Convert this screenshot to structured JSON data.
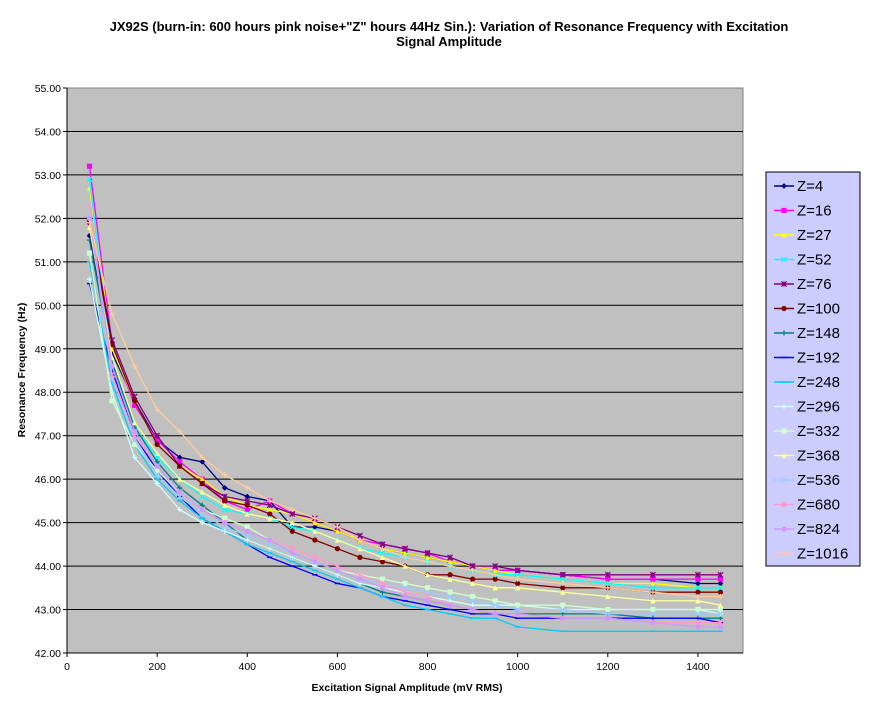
{
  "chart_data": {
    "type": "line",
    "title_lines": [
      "JX92S (burn-in: 600 hours pink noise+\"Z\" hours 44Hz Sin.): Variation of Resonance Frequency with Excitation",
      "Signal Amplitude"
    ],
    "xlabel": "Excitation Signal Amplitude (mV RMS)",
    "ylabel": "Resonance Frequency (Hz)",
    "xlim": [
      0,
      1500
    ],
    "ylim": [
      42,
      55
    ],
    "x_ticks": [
      0,
      200,
      400,
      600,
      800,
      1000,
      1200,
      1400
    ],
    "x_tick_labels": [
      "0",
      "200",
      "400",
      "600",
      "800",
      "1000",
      "1200",
      "1400"
    ],
    "y_ticks": [
      42,
      43,
      44,
      45,
      46,
      47,
      48,
      49,
      50,
      51,
      52,
      53,
      54,
      55
    ],
    "y_tick_labels": [
      "42.00",
      "43.00",
      "44.00",
      "45.00",
      "46.00",
      "47.00",
      "48.00",
      "49.00",
      "50.00",
      "51.00",
      "52.00",
      "53.00",
      "54.00",
      "55.00"
    ],
    "grid": "horizontal",
    "plot_background": "#c0c0c0",
    "legend_position": "right",
    "x": [
      50,
      100,
      150,
      200,
      250,
      300,
      350,
      400,
      450,
      500,
      550,
      600,
      650,
      700,
      750,
      800,
      850,
      900,
      950,
      1000,
      1100,
      1200,
      1300,
      1400,
      1450
    ],
    "series": [
      {
        "name": "Z=4",
        "color": "#000080",
        "marker": "diamond",
        "values": [
          51.6,
          48.9,
          47.8,
          46.9,
          46.5,
          46.4,
          45.8,
          45.6,
          45.5,
          44.9,
          44.9,
          44.8,
          44.6,
          44.4,
          44.3,
          44.2,
          44.1,
          44.0,
          43.9,
          43.9,
          43.8,
          43.7,
          43.7,
          43.6,
          43.6
        ]
      },
      {
        "name": "Z=16",
        "color": "#ff00ff",
        "marker": "square",
        "values": [
          53.2,
          49.1,
          47.7,
          46.9,
          46.4,
          46.0,
          45.5,
          45.3,
          45.5,
          45.2,
          45.0,
          44.8,
          44.6,
          44.5,
          44.4,
          44.3,
          44.1,
          44.0,
          43.9,
          43.9,
          43.8,
          43.7,
          43.7,
          43.7,
          43.7
        ]
      },
      {
        "name": "Z=27",
        "color": "#ffff00",
        "marker": "triangle",
        "values": [
          52.7,
          49.0,
          47.8,
          46.8,
          46.3,
          46.0,
          45.6,
          45.4,
          45.3,
          45.2,
          45.0,
          44.8,
          44.6,
          44.4,
          44.3,
          44.2,
          44.1,
          44.0,
          43.9,
          43.8,
          43.7,
          43.6,
          43.6,
          43.5,
          43.5
        ]
      },
      {
        "name": "Z=52",
        "color": "#00ffff",
        "marker": "x",
        "values": [
          52.9,
          48.6,
          47.2,
          46.5,
          46.0,
          45.6,
          45.3,
          45.2,
          45.1,
          44.9,
          44.8,
          44.6,
          44.4,
          44.3,
          44.2,
          44.1,
          44.0,
          43.9,
          43.8,
          43.8,
          43.7,
          43.6,
          43.5,
          43.5,
          43.5
        ]
      },
      {
        "name": "Z=76",
        "color": "#800080",
        "marker": "star",
        "values": [
          52.0,
          49.2,
          47.9,
          47.0,
          46.3,
          45.9,
          45.6,
          45.5,
          45.4,
          45.2,
          45.1,
          44.9,
          44.7,
          44.5,
          44.4,
          44.3,
          44.2,
          44.0,
          44.0,
          43.9,
          43.8,
          43.8,
          43.8,
          43.8,
          43.8
        ]
      },
      {
        "name": "Z=100",
        "color": "#800000",
        "marker": "circle",
        "values": [
          51.9,
          49.1,
          47.8,
          46.8,
          46.3,
          45.9,
          45.5,
          45.4,
          45.2,
          44.8,
          44.6,
          44.4,
          44.2,
          44.1,
          44.0,
          43.8,
          43.8,
          43.7,
          43.7,
          43.6,
          43.5,
          43.5,
          43.4,
          43.4,
          43.4
        ]
      },
      {
        "name": "Z=148",
        "color": "#008080",
        "marker": "plus",
        "values": [
          51.5,
          48.7,
          47.2,
          46.4,
          45.8,
          45.4,
          45.0,
          44.6,
          44.4,
          44.2,
          44.0,
          43.8,
          43.6,
          43.4,
          43.3,
          43.2,
          43.1,
          43.0,
          42.9,
          42.9,
          42.9,
          42.9,
          42.8,
          42.8,
          42.8
        ]
      },
      {
        "name": "Z=192",
        "color": "#0000ff",
        "marker": "dash",
        "values": [
          50.5,
          48.5,
          47.0,
          46.2,
          45.6,
          45.1,
          44.8,
          44.5,
          44.2,
          44.0,
          43.8,
          43.6,
          43.5,
          43.3,
          43.2,
          43.1,
          43.0,
          42.9,
          42.9,
          42.8,
          42.8,
          42.8,
          42.8,
          42.8,
          42.7
        ]
      },
      {
        "name": "Z=248",
        "color": "#00ccff",
        "marker": "dash",
        "values": [
          51.0,
          48.2,
          46.8,
          46.0,
          45.5,
          45.1,
          44.8,
          44.5,
          44.3,
          44.1,
          43.9,
          43.7,
          43.5,
          43.3,
          43.1,
          43.0,
          42.9,
          42.8,
          42.8,
          42.6,
          42.5,
          42.5,
          42.5,
          42.5,
          42.5
        ]
      },
      {
        "name": "Z=296",
        "color": "#ccffff",
        "marker": "plus",
        "values": [
          50.6,
          48.0,
          46.5,
          45.9,
          45.3,
          45.0,
          44.8,
          44.6,
          44.4,
          44.2,
          44.0,
          43.8,
          43.6,
          43.5,
          43.4,
          43.3,
          43.2,
          43.1,
          43.1,
          43.1,
          43.0,
          43.0,
          43.0,
          43.0,
          42.9
        ]
      },
      {
        "name": "Z=332",
        "color": "#ccffcc",
        "marker": "square",
        "values": [
          51.2,
          47.8,
          46.8,
          46.2,
          45.7,
          45.3,
          45.1,
          44.9,
          44.6,
          44.3,
          44.1,
          43.9,
          43.8,
          43.7,
          43.6,
          43.5,
          43.4,
          43.3,
          43.2,
          43.1,
          43.1,
          43.0,
          43.0,
          43.0,
          43.0
        ]
      },
      {
        "name": "Z=368",
        "color": "#ffff99",
        "marker": "triangle",
        "values": [
          51.8,
          48.8,
          47.3,
          46.6,
          46.0,
          45.7,
          45.4,
          45.2,
          45.1,
          45.0,
          44.8,
          44.6,
          44.4,
          44.2,
          44.0,
          43.8,
          43.7,
          43.6,
          43.5,
          43.5,
          43.4,
          43.3,
          43.2,
          43.2,
          43.1
        ]
      },
      {
        "name": "Z=536",
        "color": "#99ccff",
        "marker": "x",
        "values": [
          52.1,
          48.3,
          46.9,
          46.1,
          45.6,
          45.2,
          44.9,
          44.7,
          44.5,
          44.3,
          44.1,
          43.9,
          43.7,
          43.6,
          43.5,
          43.4,
          43.3,
          43.2,
          43.1,
          43.0,
          43.0,
          42.9,
          42.9,
          42.9,
          42.9
        ]
      },
      {
        "name": "Z=680",
        "color": "#ff99cc",
        "marker": "star",
        "values": [
          52.3,
          48.4,
          47.0,
          46.3,
          45.7,
          45.3,
          45.0,
          44.8,
          44.6,
          44.4,
          44.2,
          44.0,
          43.8,
          43.6,
          43.4,
          43.3,
          43.1,
          43.0,
          42.9,
          42.9,
          42.8,
          42.8,
          42.7,
          42.7,
          42.7
        ]
      },
      {
        "name": "Z=824",
        "color": "#cc99ff",
        "marker": "circle",
        "values": [
          52.0,
          48.6,
          47.1,
          46.3,
          45.7,
          45.3,
          45.0,
          44.8,
          44.6,
          44.3,
          44.1,
          43.9,
          43.7,
          43.5,
          43.3,
          43.2,
          43.1,
          43.0,
          42.9,
          42.9,
          42.8,
          42.8,
          42.7,
          42.6,
          42.6
        ]
      },
      {
        "name": "Z=1016",
        "color": "#ffcc99",
        "marker": "plus",
        "values": [
          51.9,
          49.8,
          48.6,
          47.6,
          47.1,
          46.5,
          46.1,
          45.8,
          45.5,
          45.3,
          45.1,
          44.9,
          44.6,
          44.4,
          44.2,
          44.1,
          44.0,
          43.9,
          43.8,
          43.7,
          43.6,
          43.5,
          43.4,
          43.3,
          43.3
        ]
      }
    ]
  }
}
